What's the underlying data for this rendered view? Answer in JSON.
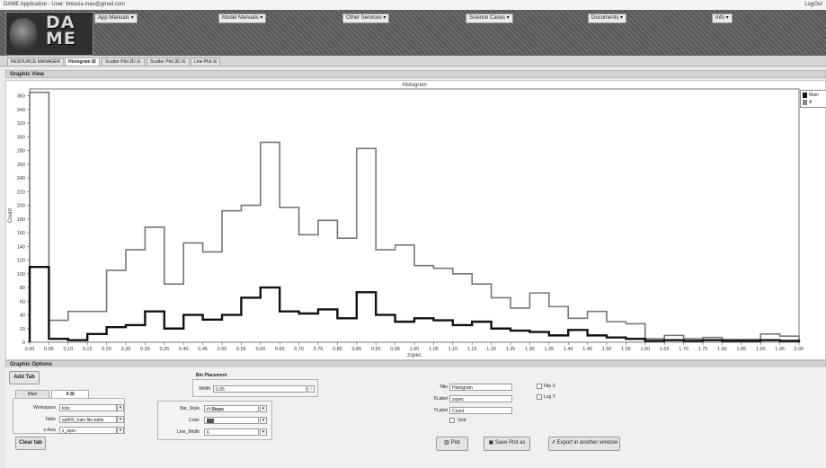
{
  "app": {
    "title": "DAME Application - User: brescia.max@gmail.com",
    "logout": "LogOut",
    "logo_text_line1": "DA",
    "logo_text_line2": "ME"
  },
  "menu": [
    {
      "label": "App Manuals ▾"
    },
    {
      "label": "Model Manuals ▾"
    },
    {
      "label": "Other Services ▾"
    },
    {
      "label": "Science Cases ▾"
    },
    {
      "label": "Documents ▾"
    },
    {
      "label": "Info ▾"
    }
  ],
  "tabs": [
    {
      "label": "RESOURCE MANAGER"
    },
    {
      "label": "Histogram ☒"
    },
    {
      "label": "Scatter Plot 2D ☒"
    },
    {
      "label": "Scatter Plot 3D ☒"
    },
    {
      "label": "Line Plot ☒"
    }
  ],
  "graphic_view": {
    "header": "Graphic View"
  },
  "chart_data": {
    "type": "bar",
    "title": "Histogram",
    "xlabel": "zspec",
    "ylabel": "Count",
    "xlim": [
      0,
      2.0
    ],
    "ylim": [
      0,
      370
    ],
    "bin_width": 0.05,
    "x_ticks": [
      "0.00",
      "0.05",
      "0.10",
      "0.15",
      "0.20",
      "0.25",
      "0.30",
      "0.35",
      "0.40",
      "0.45",
      "0.50",
      "0.55",
      "0.60",
      "0.65",
      "0.70",
      "0.75",
      "0.80",
      "0.85",
      "0.90",
      "0.95",
      "1.00",
      "1.05",
      "1.10",
      "1.15",
      "1.20",
      "1.25",
      "1.30",
      "1.35",
      "1.40",
      "1.45",
      "1.50",
      "1.55",
      "1.60",
      "1.65",
      "1.70",
      "1.75",
      "1.80",
      "1.85",
      "1.90",
      "1.95",
      "2.00"
    ],
    "y_ticks": [
      0,
      20,
      40,
      60,
      80,
      100,
      120,
      140,
      160,
      180,
      200,
      220,
      240,
      260,
      280,
      300,
      320,
      340,
      360
    ],
    "legend": [
      "Main",
      "A"
    ],
    "legend_position": "right",
    "series": [
      {
        "name": "Main",
        "color": "#777777",
        "values": [
          365,
          32,
          45,
          45,
          105,
          135,
          168,
          85,
          145,
          132,
          192,
          200,
          292,
          197,
          157,
          178,
          152,
          283,
          135,
          142,
          112,
          108,
          100,
          85,
          65,
          50,
          72,
          52,
          35,
          45,
          30,
          27,
          5,
          10,
          5,
          7,
          4,
          4,
          12,
          9
        ]
      },
      {
        "name": "A",
        "color": "#111111",
        "values": [
          110,
          5,
          3,
          12,
          22,
          25,
          45,
          20,
          40,
          33,
          40,
          65,
          80,
          45,
          42,
          48,
          35,
          73,
          40,
          30,
          35,
          32,
          25,
          30,
          20,
          17,
          15,
          10,
          18,
          10,
          7,
          5,
          2,
          3,
          2,
          3,
          2,
          2,
          3,
          2
        ]
      }
    ]
  },
  "graphic_options": {
    "header": "Graphic Options",
    "add_tab": "Add Tab",
    "clear_tab": "Clear tab",
    "inner_tabs": [
      {
        "label": "Main"
      },
      {
        "label": "A ☒"
      }
    ],
    "workspace_label": "Workspace",
    "workspace_value": "kids",
    "table_label": "Table",
    "table_value": "sp800_train.fits-table",
    "xaxis_label": "x-Axis",
    "xaxis_value": "z_spec",
    "bin_placement_title": "Bin Placement",
    "width_label": "Width",
    "width_value": "0.05",
    "bar_style_label": "Bar_Style",
    "bar_style_value": "Steps",
    "color_label": "Color",
    "color_value": "#555555",
    "line_width_label": "Line_Width",
    "line_width_value": "6",
    "title_label": "Title",
    "title_value": "Histogram",
    "xlabel_label": "XLabel",
    "xlabel_value": "zspec",
    "ylabel_label": "YLabel",
    "ylabel_value": "Count",
    "grid_label": "Grid",
    "flipx_label": "Flip X",
    "logy_label": "Log Y",
    "plot_button": "Plot",
    "save_button": "Save Plot as",
    "export_button": "Export in another window"
  }
}
